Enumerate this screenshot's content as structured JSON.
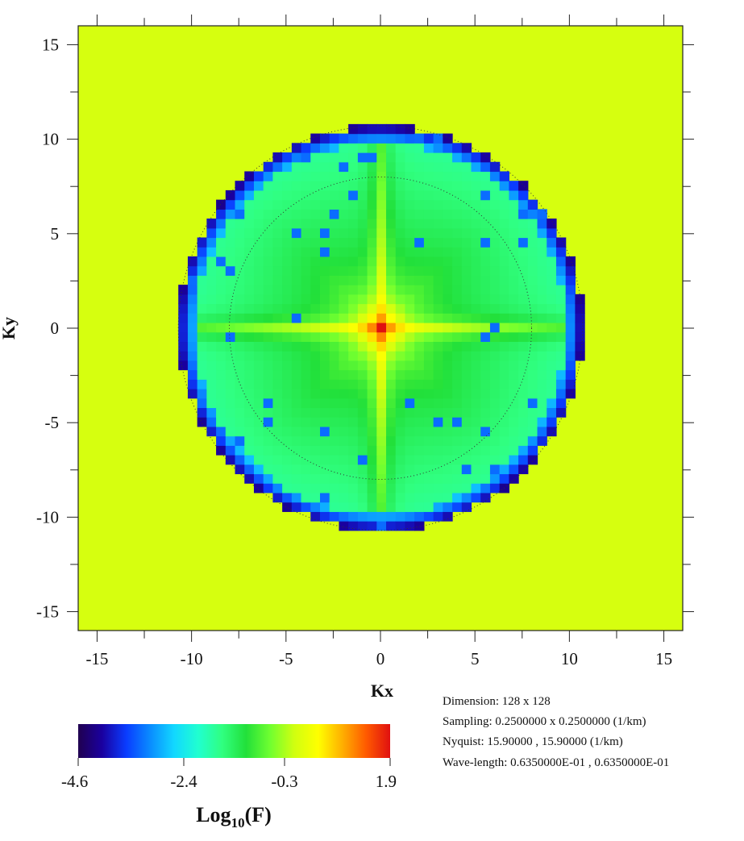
{
  "chart_data": {
    "type": "heatmap",
    "title": "",
    "xlabel": "Kx",
    "ylabel": "Ky",
    "xlim": [
      -16,
      16
    ],
    "ylim": [
      -16,
      16
    ],
    "x_ticks": [
      -15,
      -10,
      -5,
      0,
      5,
      10,
      15
    ],
    "y_ticks": [
      15,
      10,
      5,
      0,
      -5,
      -10,
      -15
    ],
    "x_tick_labels": [
      "-15",
      "-10",
      "-5",
      "0",
      "5",
      "10",
      "15"
    ],
    "y_tick_labels": [
      "15",
      "10",
      "5",
      "0",
      "-5",
      "-10",
      "-15"
    ],
    "background_value": 0.2,
    "outer_circle_radius": 10.7,
    "inner_dotted_circle_radius": 8.0,
    "description_values": {
      "center_peak": 1.9,
      "cross_arms": 0.3,
      "inner_fill": -1.0,
      "rim_minimum": -4.6
    },
    "colorbar": {
      "label_main": "Log",
      "label_sub": "10",
      "label_suffix": "(F)",
      "tick_values": [
        -4.6,
        -2.4,
        -0.3,
        1.9
      ],
      "tick_labels": [
        "-4.6",
        "-2.4",
        "-0.3",
        "1.9"
      ],
      "range": [
        -4.6,
        1.9
      ],
      "colors": [
        "#200050",
        "#1a00a0",
        "#0a3cff",
        "#0a8cff",
        "#12d8ff",
        "#20ffd0",
        "#30ff80",
        "#22e03a",
        "#70ff30",
        "#d0ff10",
        "#ffff00",
        "#ffb000",
        "#ff5a00",
        "#e01010"
      ]
    },
    "info_lines": [
      "Dimension:  128 x 128",
      "Sampling:  0.2500000  x  0.2500000 (1/km)",
      "Nyquist:   15.90000  , 15.90000 (1/km)",
      "Wave-length:  0.6350000E-01  , 0.6350000E-01"
    ]
  },
  "colors": {
    "background_fill": "#d6ff0f",
    "frame": "#222222"
  }
}
